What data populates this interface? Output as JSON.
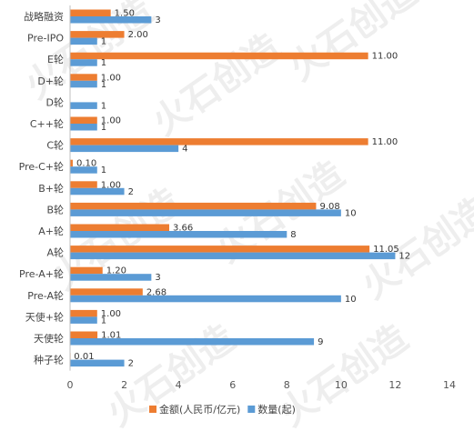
{
  "chart_data": {
    "type": "bar",
    "orientation": "horizontal",
    "categories": [
      "战略融资",
      "Pre-IPO",
      "E轮",
      "D+轮",
      "D轮",
      "C++轮",
      "C轮",
      "Pre-C+轮",
      "B+轮",
      "B轮",
      "A+轮",
      "A轮",
      "Pre-A+轮",
      "Pre-A轮",
      "天使+轮",
      "天使轮",
      "种子轮"
    ],
    "series": [
      {
        "name": "金额(人民币/亿元)",
        "color": "#ED7D31",
        "values": [
          1.5,
          2.0,
          11.0,
          1.0,
          null,
          1.0,
          11.0,
          0.1,
          1.0,
          9.08,
          3.66,
          11.05,
          1.2,
          2.68,
          1.0,
          1.01,
          0.01
        ],
        "labels": [
          "1.50",
          "2.00",
          "11.00",
          "1.00",
          "",
          "1.00",
          "11.00",
          "0.10",
          "1.00",
          "9.08",
          "3.66",
          "11.05",
          "1.20",
          "2.68",
          "1.00",
          "1.01",
          "0.01"
        ]
      },
      {
        "name": "数量(起)",
        "color": "#5B9BD5",
        "values": [
          3,
          1,
          1,
          1,
          1,
          1,
          4,
          1,
          2,
          10,
          8,
          12,
          3,
          10,
          1,
          9,
          2
        ],
        "labels": [
          "3",
          "1",
          "1",
          "1",
          "1",
          "1",
          "4",
          "1",
          "2",
          "10",
          "8",
          "12",
          "3",
          "10",
          "1",
          "9",
          "2"
        ]
      }
    ],
    "xlim": [
      0,
      14
    ],
    "xticks": [
      0,
      2,
      4,
      6,
      8,
      10,
      12,
      14
    ],
    "grid": false,
    "legend": "bottom",
    "watermark": "火石创造"
  }
}
